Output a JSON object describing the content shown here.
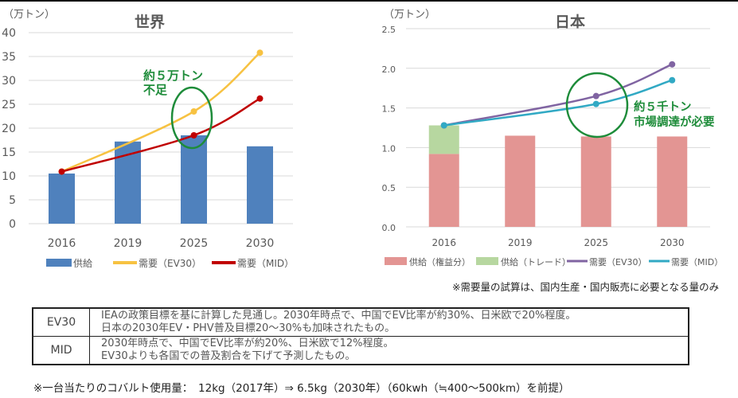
{
  "chart_data": [
    {
      "type": "bar",
      "id": "world",
      "title": "世界",
      "ylabel": "（万トン）",
      "xlabel": "",
      "ylim": [
        0,
        40
      ],
      "yticks": [
        0,
        5,
        10,
        15,
        20,
        25,
        30,
        35,
        40
      ],
      "grid": true,
      "categories": [
        "2016",
        "2019",
        "2025",
        "2030"
      ],
      "series": [
        {
          "name": "供給",
          "kind": "bar",
          "color": "#4F81BD",
          "values": [
            10.5,
            17.2,
            18.5,
            16.2
          ]
        },
        {
          "name": "需要（EV30）",
          "kind": "line",
          "color": "#F7C242",
          "points": {
            "2016": 10.9,
            "2025": 23.5,
            "2030": 35.8
          }
        },
        {
          "name": "需要（MID）",
          "kind": "line",
          "color": "#C00000",
          "points": {
            "2016": 10.9,
            "2025": 18.5,
            "2030": 26.2
          }
        }
      ],
      "legend_position": "bottom",
      "annotation": {
        "lines": [
          "約５万トン",
          "不足"
        ],
        "color": "#1E8C3A",
        "target_category": "2025"
      }
    },
    {
      "type": "bar",
      "id": "japan",
      "title": "日本",
      "ylabel": "（万トン）",
      "xlabel": "",
      "ylim": [
        0,
        2.5
      ],
      "yticks": [
        "0.0",
        "0.5",
        "1.0",
        "1.5",
        "2.0",
        "2.5"
      ],
      "grid": true,
      "stacked": true,
      "categories": [
        "2016",
        "2019",
        "2025",
        "2030"
      ],
      "series": [
        {
          "name": "供給（権益分）",
          "kind": "bar",
          "color": "#E39593",
          "values": [
            0.92,
            1.15,
            1.14,
            1.14
          ]
        },
        {
          "name": "供給（トレード）",
          "kind": "bar",
          "color": "#B7D7A0",
          "values": [
            0.36,
            0,
            0,
            0
          ]
        },
        {
          "name": "需要（EV30）",
          "kind": "line",
          "color": "#8064A2",
          "points": {
            "2016": 1.28,
            "2025": 1.65,
            "2030": 2.05
          }
        },
        {
          "name": "需要（MID）",
          "kind": "line",
          "color": "#31A9C4",
          "points": {
            "2016": 1.28,
            "2025": 1.55,
            "2030": 1.85
          }
        }
      ],
      "legend_position": "bottom",
      "annotation": {
        "lines": [
          "約５千トン",
          "市場調達が必要"
        ],
        "color": "#1E8C3A",
        "target_category": "2025"
      }
    }
  ],
  "japan_note": "※需要量の試算は、国内生産・国内販売に必要となる量のみ",
  "scenario_table": [
    {
      "key": "EV30",
      "lines": [
        "IEAの政策目標を基に計算した見通し。2030年時点で、中国でEV比率が約30%、日米欧で20%程度。",
        "日本の2030年EV・PHV普及目標20～30%も加味されたもの。"
      ]
    },
    {
      "key": "MID",
      "lines": [
        "2030年時点で、中国でEV比率が約20%、日米欧で12%程度。",
        "EV30よりも各国での普及割合を下げて予測したもの。"
      ]
    }
  ],
  "footnote": "※一台当たりのコバルト使用量：　12kg（2017年）⇒ 6.5kg（2030年）（60kwh（≒400～500km）を前提）"
}
